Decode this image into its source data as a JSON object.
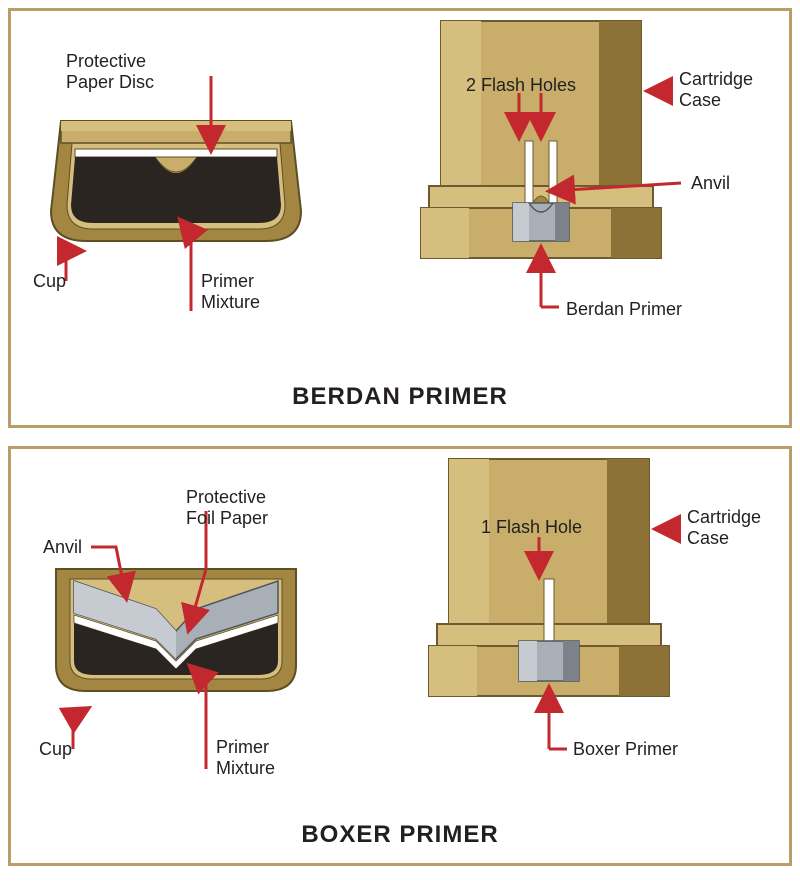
{
  "panel_border_color": "#b89e66",
  "title_font_size": 24,
  "label_font_size": 18,
  "label_color": "#231f20",
  "arrow_color": "#c2282d",
  "brass_outer": "#a38642",
  "brass_light": "#d6be7e",
  "brass_mid": "#c8ae6a",
  "brass_dark": "#8d7238",
  "steel_light": "#c6cbd1",
  "steel_mid": "#a9afb6",
  "steel_dark": "#7d828a",
  "mixture_dark": "#2b2521",
  "white": "#ffffff",
  "berdan": {
    "title": "BERDAN PRIMER",
    "labels": {
      "paper_disc": "Protective\nPaper Disc",
      "cup": "Cup",
      "primer_mixture": "Primer\nMixture",
      "flash_holes": "2 Flash Holes",
      "cartridge_case": "Cartridge\nCase",
      "anvil": "Anvil",
      "berdan_primer": "Berdan Primer"
    }
  },
  "boxer": {
    "title": "BOXER PRIMER",
    "labels": {
      "anvil": "Anvil",
      "foil_paper": "Protective\nFoil Paper",
      "cup": "Cup",
      "primer_mixture": "Primer\nMixture",
      "flash_hole": "1 Flash Hole",
      "cartridge_case": "Cartridge\nCase",
      "boxer_primer": "Boxer Primer"
    }
  }
}
